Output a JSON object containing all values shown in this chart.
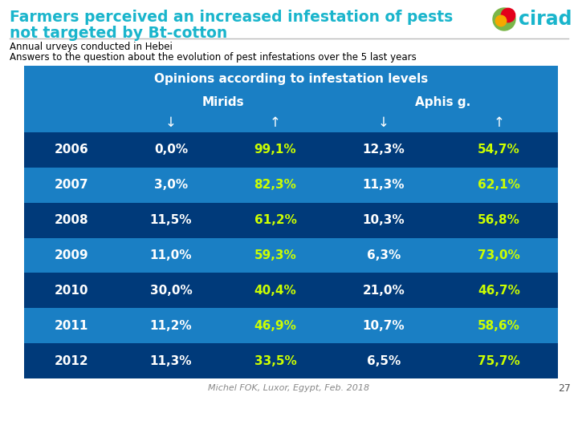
{
  "title_line1": "Farmers perceived an increased infestation of pests",
  "title_line2": "not targeted by Bt-cotton",
  "subtitle1": "Annual urveys conducted in Hebei",
  "subtitle2": "Answers to the question about the evolution of pest infestations over the 5 last years",
  "footer": "Michel FOK, Luxor, Egypt, Feb. 2018",
  "page_num": "27",
  "table_header": "Opinions according to infestation levels",
  "col_headers": [
    "Mirids",
    "Aphis g."
  ],
  "years": [
    "2006",
    "2007",
    "2008",
    "2009",
    "2010",
    "2011",
    "2012"
  ],
  "mirids_down": [
    "0,0%",
    "3,0%",
    "11,5%",
    "11,0%",
    "30,0%",
    "11,2%",
    "11,3%"
  ],
  "mirids_up": [
    "99,1%",
    "82,3%",
    "61,2%",
    "59,3%",
    "40,4%",
    "46,9%",
    "33,5%"
  ],
  "aphis_down": [
    "12,3%",
    "11,3%",
    "10,3%",
    "6,3%",
    "21,0%",
    "10,7%",
    "6,5%"
  ],
  "aphis_up": [
    "54,7%",
    "62,1%",
    "56,8%",
    "73,0%",
    "46,7%",
    "58,6%",
    "75,7%"
  ],
  "bg_color": "#ffffff",
  "title_color": "#1ab5cc",
  "table_header_bg": "#1a7fc4",
  "table_header_text": "#ffffff",
  "row_bg_odd": "#003a7a",
  "row_bg_even": "#1a7fc4",
  "year_text_color": "#ffffff",
  "down_col_color": "#ffffff",
  "up_col_color": "#ccff00",
  "divider_color": "#bbbbbb",
  "subtitle_color": "#000000",
  "footer_color": "#888888",
  "pagenum_color": "#555555",
  "cirad_green": "#7ab648",
  "cirad_red": "#e3001b",
  "cirad_yellow": "#f5a800",
  "cirad_text_color": "#1ab5cc"
}
